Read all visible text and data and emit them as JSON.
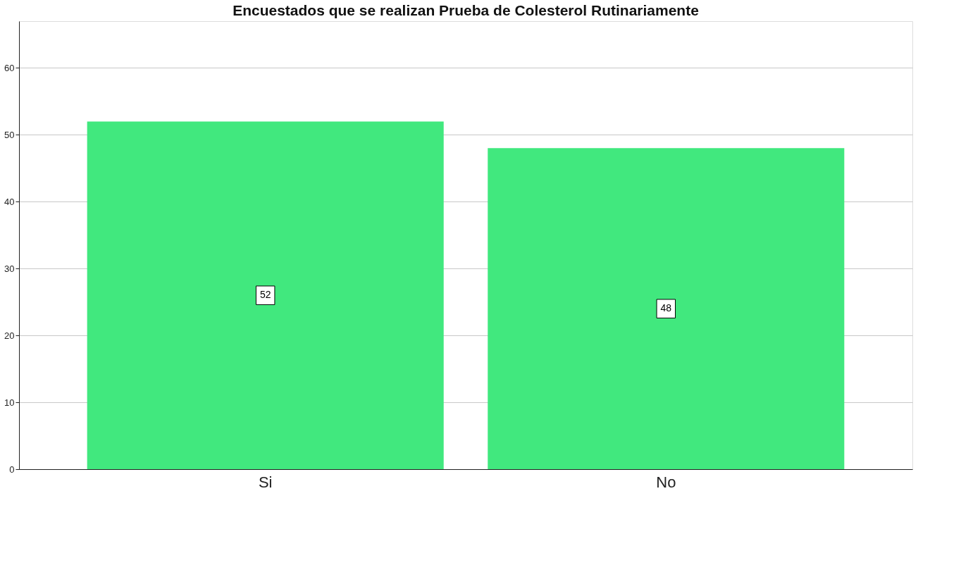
{
  "chart_data": {
    "type": "bar",
    "title": "Encuestados que se realizan Prueba de Colesterol Rutinariamente",
    "categories": [
      "Si",
      "No"
    ],
    "values": [
      52,
      48
    ],
    "color": "#41e87e",
    "ylim": [
      0,
      67
    ],
    "yticks": [
      0,
      10,
      20,
      30,
      40,
      50,
      60
    ],
    "grid": "y",
    "data_labels": true
  }
}
